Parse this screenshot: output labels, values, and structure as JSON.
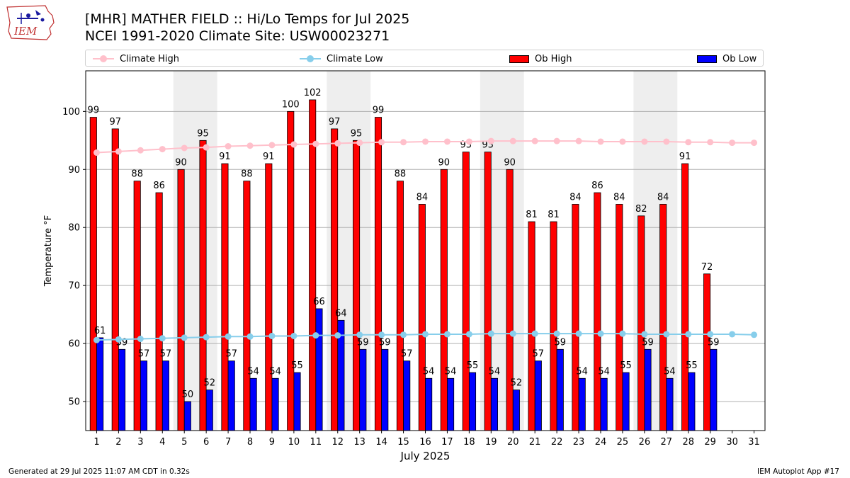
{
  "header": {
    "title_line1": "[MHR] MATHER FIELD :: Hi/Lo Temps for Jul 2025",
    "title_line2": "NCEI 1991-2020 Climate Site: USW00023271",
    "logo_text": "IEM"
  },
  "footer": {
    "left": "Generated at 29 Jul 2025 11:07 AM CDT in 0.32s",
    "right": "IEM Autoplot App #17"
  },
  "colors": {
    "climate_high": "#ffc0cb",
    "climate_low": "#87ceeb",
    "ob_high": "#ff0000",
    "ob_low": "#0000ff",
    "weekend_shade": "#eeeeee",
    "grid": "#b0b0b0"
  },
  "chart_data": {
    "type": "bar",
    "xlabel": "July 2025",
    "ylabel": "Temperature °F",
    "ylim": [
      45,
      107
    ],
    "yticks": [
      50,
      60,
      70,
      80,
      90,
      100
    ],
    "grid": "horizontal",
    "legend_position": "top",
    "categories": [
      "1",
      "2",
      "3",
      "4",
      "5",
      "6",
      "7",
      "8",
      "9",
      "10",
      "11",
      "12",
      "13",
      "14",
      "15",
      "16",
      "17",
      "18",
      "19",
      "20",
      "21",
      "22",
      "23",
      "24",
      "25",
      "26",
      "27",
      "28",
      "29",
      "30",
      "31"
    ],
    "shaded_day_pairs": [
      [
        5,
        6
      ],
      [
        12,
        13
      ],
      [
        19,
        20
      ],
      [
        26,
        27
      ]
    ],
    "series": [
      {
        "name": "Climate High",
        "kind": "line",
        "values": [
          92.9,
          93.1,
          93.3,
          93.5,
          93.7,
          93.8,
          94.0,
          94.1,
          94.2,
          94.3,
          94.4,
          94.5,
          94.6,
          94.7,
          94.7,
          94.8,
          94.8,
          94.8,
          94.9,
          94.9,
          94.9,
          94.9,
          94.9,
          94.8,
          94.8,
          94.8,
          94.8,
          94.7,
          94.7,
          94.6,
          94.6
        ]
      },
      {
        "name": "Climate Low",
        "kind": "line",
        "values": [
          60.6,
          60.7,
          60.8,
          60.9,
          61.0,
          61.1,
          61.2,
          61.2,
          61.3,
          61.3,
          61.4,
          61.4,
          61.5,
          61.5,
          61.5,
          61.6,
          61.6,
          61.6,
          61.7,
          61.7,
          61.7,
          61.7,
          61.7,
          61.7,
          61.7,
          61.6,
          61.6,
          61.6,
          61.6,
          61.6,
          61.5
        ]
      },
      {
        "name": "Ob High",
        "kind": "bar",
        "values": [
          99,
          97,
          88,
          86,
          90,
          95,
          91,
          88,
          91,
          100,
          102,
          97,
          95,
          99,
          88,
          84,
          90,
          93,
          93,
          90,
          81,
          81,
          84,
          86,
          84,
          82,
          84,
          91,
          72,
          null,
          null
        ]
      },
      {
        "name": "Ob Low",
        "kind": "bar",
        "values": [
          61,
          59,
          57,
          57,
          50,
          52,
          57,
          54,
          54,
          55,
          66,
          64,
          59,
          59,
          57,
          54,
          54,
          55,
          54,
          52,
          57,
          59,
          54,
          54,
          55,
          59,
          54,
          55,
          59,
          null,
          null
        ]
      }
    ]
  }
}
